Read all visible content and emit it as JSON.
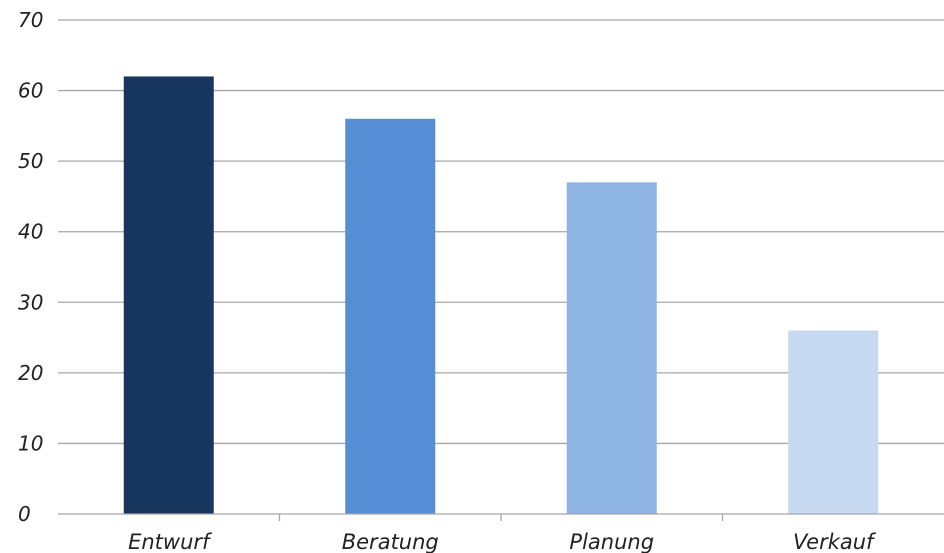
{
  "chart_data": {
    "type": "bar",
    "categories": [
      "Entwurf",
      "Beratung",
      "Planung",
      "Verkauf"
    ],
    "values": [
      62,
      56,
      47,
      26
    ],
    "ylim": [
      0,
      70
    ],
    "yticks": [
      0,
      10,
      20,
      30,
      40,
      50,
      60,
      70
    ],
    "grid": true,
    "legend": "none",
    "colors": [
      "#17365d",
      "#558ed5",
      "#8eb4e3",
      "#c6d9f1"
    ],
    "gridline_color": "#a6a6a6",
    "axis_color": "#a6a6a6"
  }
}
